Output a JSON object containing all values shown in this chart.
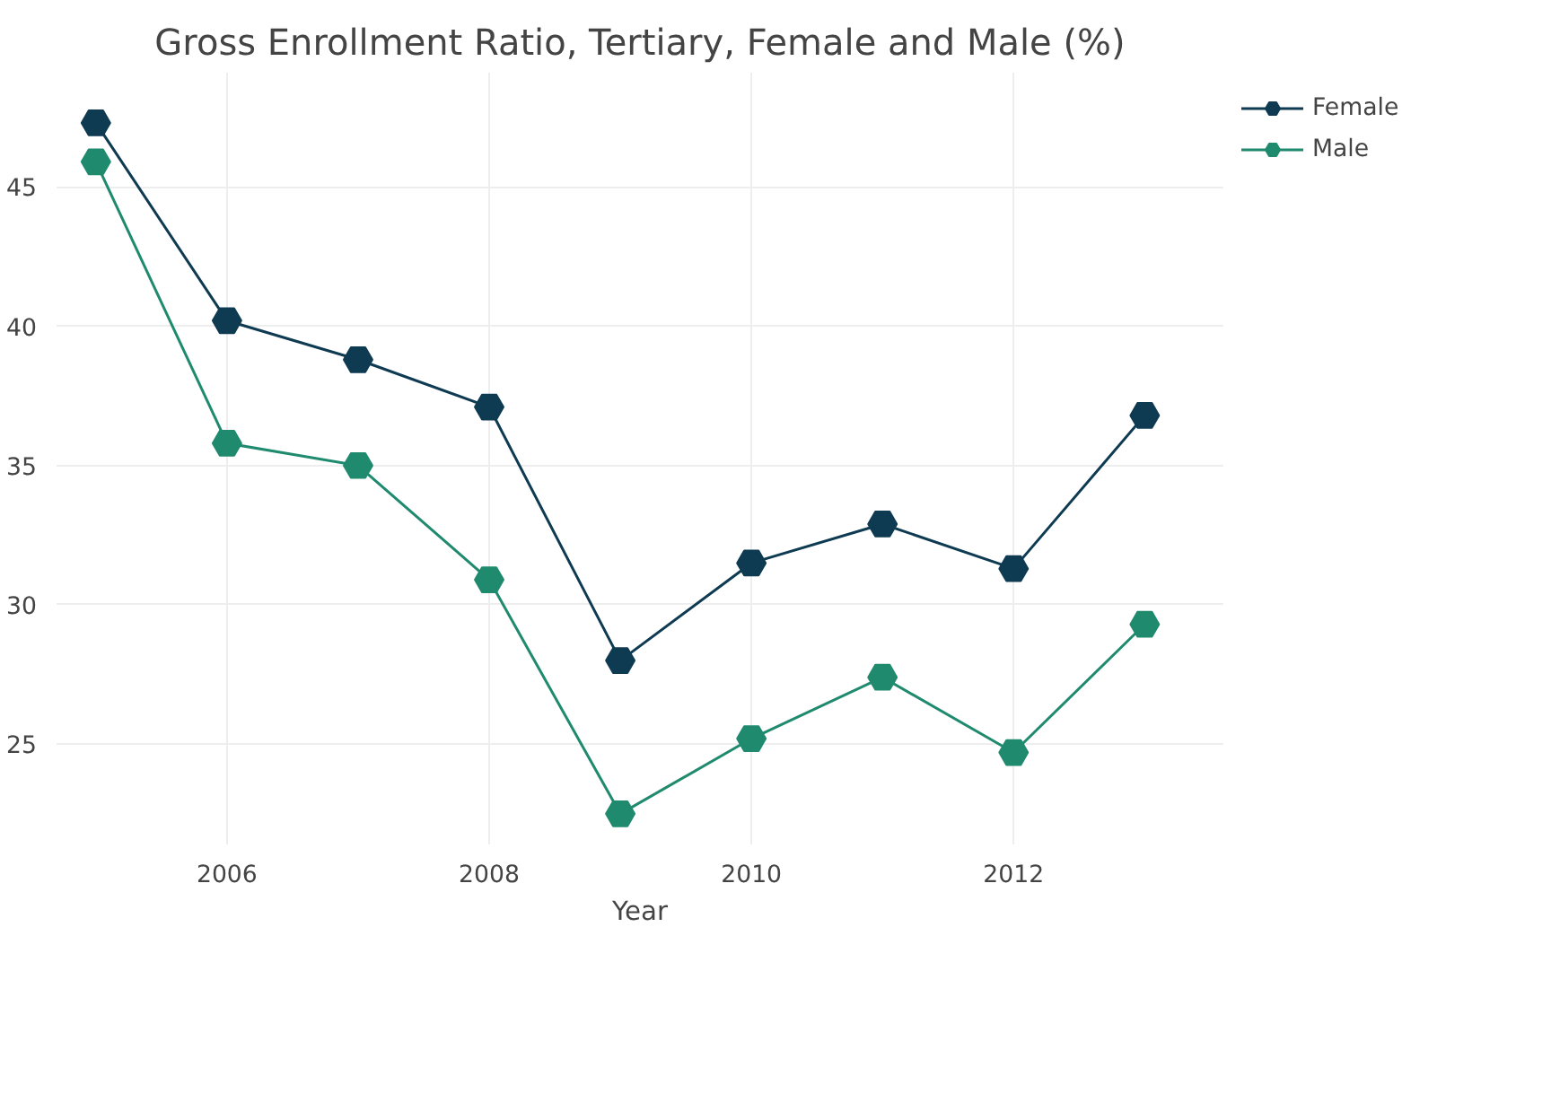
{
  "chart_data": {
    "type": "line",
    "title": "Gross Enrollment Ratio, Tertiary, Female and Male (%)",
    "xlabel": "Year",
    "x": [
      2005,
      2006,
      2007,
      2008,
      2009,
      2010,
      2011,
      2012,
      2013
    ],
    "series": [
      {
        "name": "Female",
        "color": "#0e3a52",
        "values": [
          47.3,
          40.2,
          38.8,
          37.1,
          28.0,
          31.5,
          32.9,
          31.3,
          36.8
        ]
      },
      {
        "name": "Male",
        "color": "#1f8a6e",
        "values": [
          45.9,
          35.8,
          35.0,
          30.9,
          22.5,
          25.2,
          27.4,
          24.7,
          29.3
        ]
      }
    ],
    "xlim": [
      2004.7,
      2013.6
    ],
    "xticks": [
      2006,
      2008,
      2010,
      2012
    ],
    "ylim": [
      21.4,
      49.1
    ],
    "yticks": [
      25,
      30,
      35,
      40,
      45
    ],
    "grid": true,
    "legend": "top right",
    "marker": "circle",
    "line_style": "solid"
  }
}
